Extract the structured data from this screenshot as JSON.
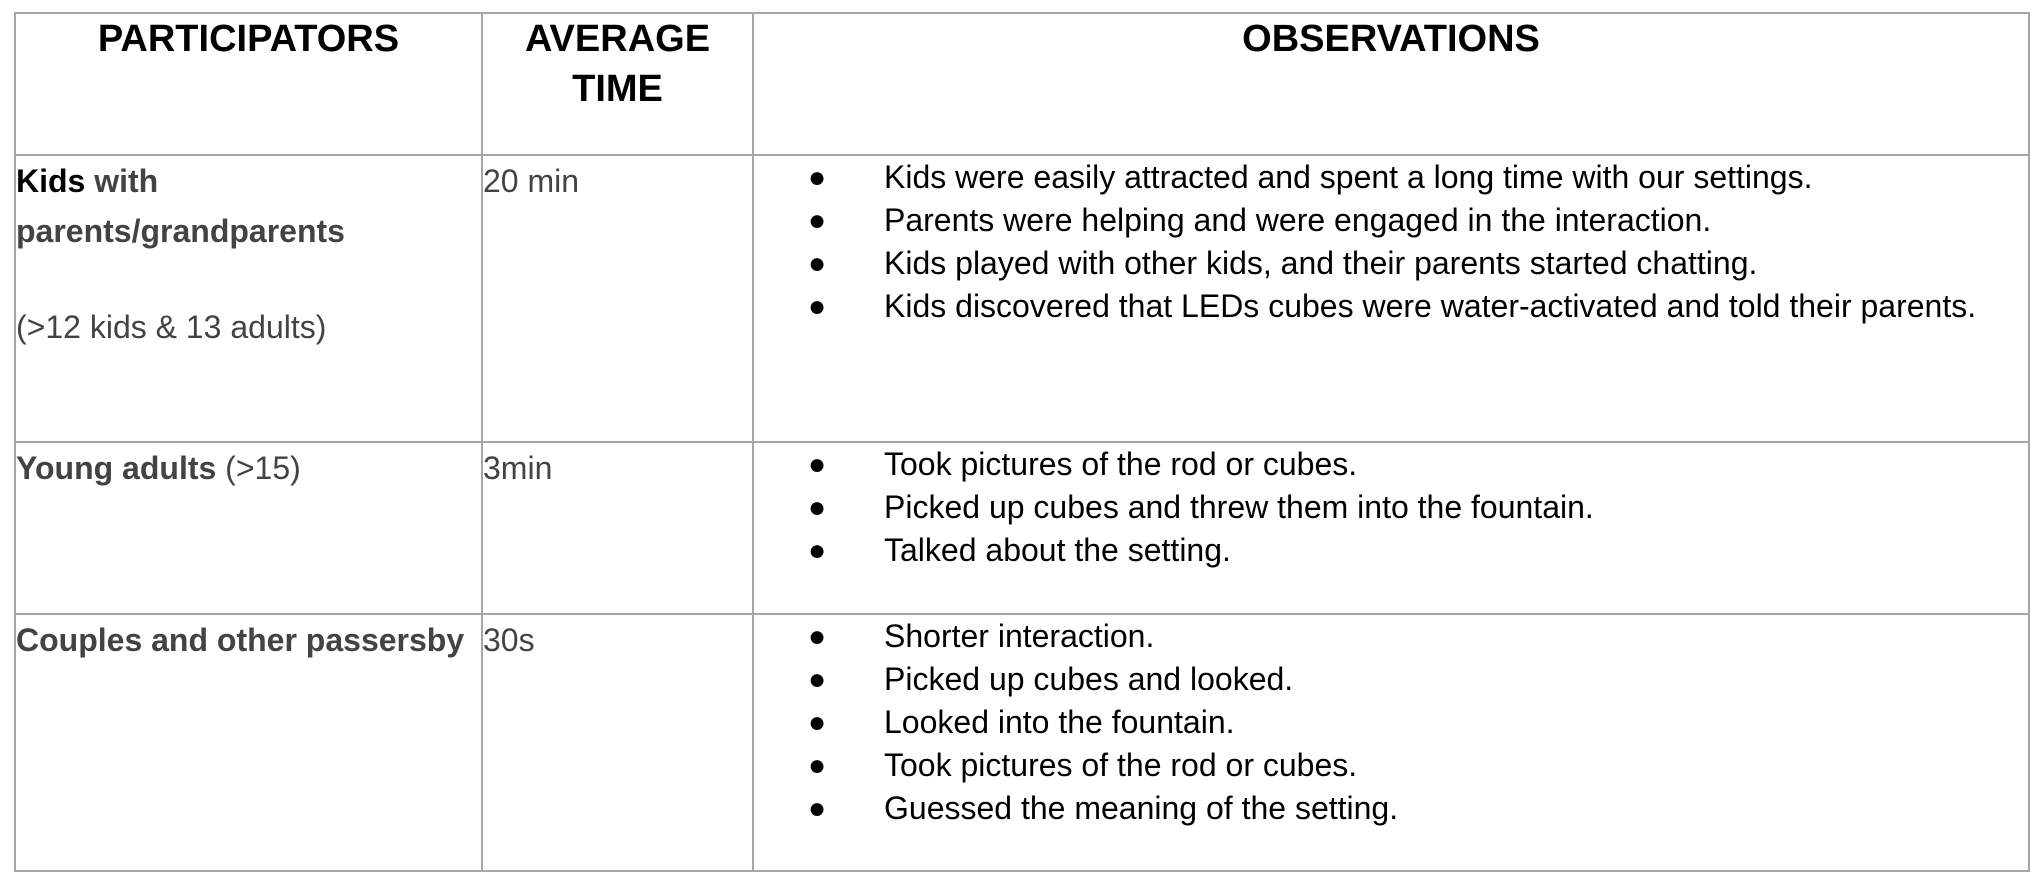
{
  "headers": {
    "participators": "PARTICIPATORS",
    "average_time_line1": "AVERAGE",
    "average_time_line2": "TIME",
    "observations": "OBSERVATIONS"
  },
  "bullet_glyph": "●",
  "rows": [
    {
      "participant_bold": "Kids",
      "participant_rest": " with parents/grandparents",
      "participant_note": "(>12 kids & 13 adults)",
      "time": "20 min",
      "observations": [
        "Kids were easily attracted and spent a long time with our settings.",
        "Parents were helping and were engaged in the interaction.",
        "Kids played with other kids, and their parents started chatting.",
        "Kids discovered that LEDs cubes were water-activated and told their parents."
      ]
    },
    {
      "participant_bold": "Young adults",
      "participant_rest": " (>15)",
      "time": "3min",
      "observations": [
        "Took pictures of the rod or cubes.",
        "Picked up cubes and threw them into the fountain.",
        "Talked about the setting."
      ]
    },
    {
      "participant_bold": "Couples and other passersby",
      "time": "30s",
      "observations": [
        "Shorter interaction.",
        "Picked up cubes and looked.",
        "Looked into the fountain.",
        "Took pictures of the rod or cubes.",
        "Guessed the meaning of the setting."
      ]
    }
  ],
  "colors": {
    "border": "#a6a6a6",
    "header_text": "#000000",
    "muted_text": "#434343",
    "body_text": "#000000"
  }
}
